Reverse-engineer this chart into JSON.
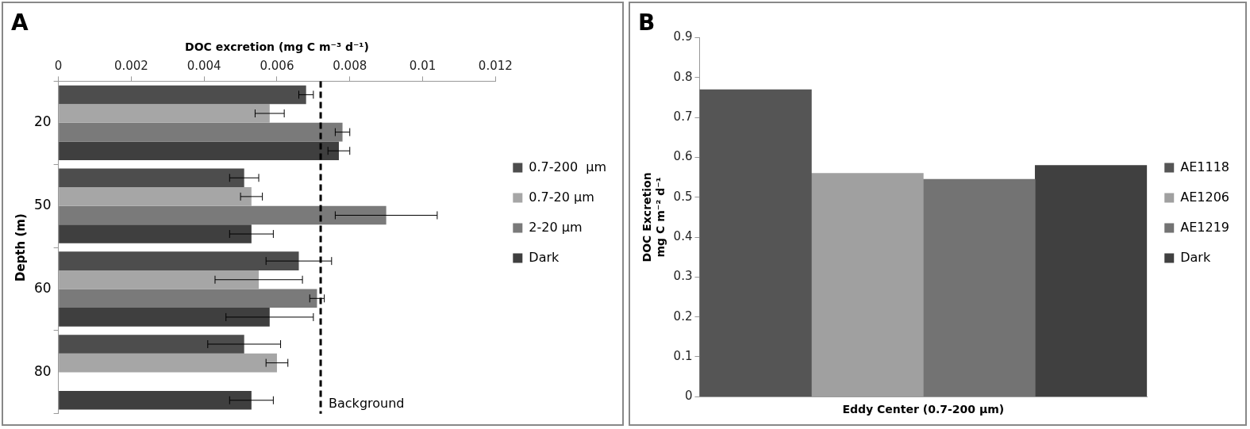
{
  "chart_data": [
    {
      "type": "bar",
      "title": "A",
      "orientation": "horizontal",
      "xlabel": "DOC excretion (mg C m⁻³ d⁻¹)",
      "ylabel": "Depth (m)",
      "categories": [
        "20",
        "50",
        "60",
        "80"
      ],
      "xlim": [
        0,
        0.012
      ],
      "xticks": [
        0,
        0.002,
        0.004,
        0.006,
        0.008,
        0.01,
        0.012
      ],
      "grid": false,
      "legend": "right",
      "series": [
        {
          "name": "0.7-200  µm",
          "color": "#4d4d4d",
          "values": [
            0.0068,
            0.0051,
            0.0066,
            0.0051
          ],
          "errors": [
            0.0002,
            0.0004,
            0.0009,
            0.001
          ]
        },
        {
          "name": "0.7-20 µm",
          "color": "#a6a6a6",
          "values": [
            0.0058,
            0.0053,
            0.0055,
            0.006
          ],
          "errors": [
            0.0004,
            0.0003,
            0.0012,
            0.0003
          ]
        },
        {
          "name": "2-20 µm",
          "color": "#7a7a7a",
          "values": [
            0.0078,
            0.009,
            0.0071,
            null
          ],
          "errors": [
            0.0002,
            0.0014,
            0.0002,
            null
          ]
        },
        {
          "name": "Dark",
          "color": "#3f3f3f",
          "values": [
            0.0077,
            0.0053,
            0.0058,
            0.0053
          ],
          "errors": [
            0.0003,
            0.0006,
            0.0012,
            0.0006
          ]
        }
      ],
      "ref_lines": [
        {
          "axis": "x",
          "value": 0.0072,
          "label": "Background",
          "color": "#000000",
          "line_style": "dashed"
        }
      ]
    },
    {
      "type": "bar",
      "title": "B",
      "xlabel": null,
      "ylabel": "DOC Excretion\nmg C m⁻² d⁻¹",
      "categories": [
        "Eddy Center (0.7-200 µm)"
      ],
      "ylim": [
        0,
        0.9
      ],
      "yticks": [
        0,
        0.1,
        0.2,
        0.3,
        0.4,
        0.5,
        0.6,
        0.7,
        0.8,
        0.9
      ],
      "grid": false,
      "legend": "right",
      "series": [
        {
          "name": "AE1118",
          "color": "#555555",
          "values": [
            0.77
          ]
        },
        {
          "name": "AE1206",
          "color": "#a0a0a0",
          "values": [
            0.56
          ]
        },
        {
          "name": "AE1219",
          "color": "#737373",
          "values": [
            0.545
          ]
        },
        {
          "name": "Dark",
          "color": "#404040",
          "values": [
            0.58
          ]
        }
      ]
    }
  ]
}
